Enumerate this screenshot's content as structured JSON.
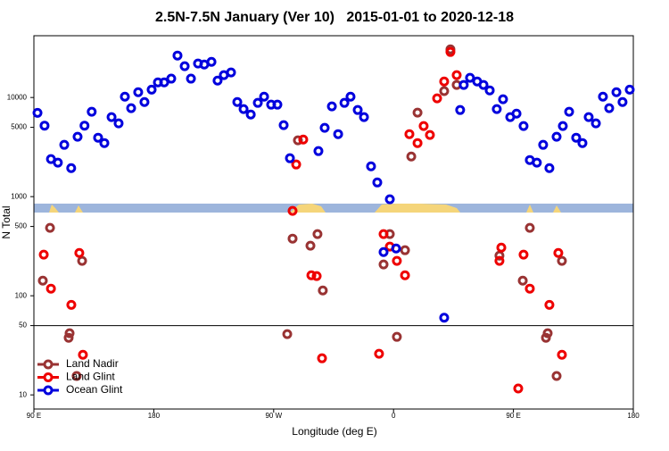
{
  "chart_data": {
    "type": "scatter",
    "title": "2.5N-7.5N January (Ver 10)   2015-01-01 to 2020-12-18",
    "xlabel": "Longitude (deg E)",
    "ylabel": "N Total",
    "xlim": [
      90,
      540
    ],
    "xticks": [
      {
        "value": 90,
        "label": "90 E"
      },
      180,
      {
        "value": 270,
        "label": "90 W"
      },
      {
        "value": 360,
        "label": "0"
      },
      {
        "value": 450,
        "label": "90 E"
      },
      {
        "value": 540,
        "label": "180"
      }
    ],
    "ylim": [
      7.2,
      42000
    ],
    "log_y": true,
    "yticks": [
      10,
      50,
      100,
      500,
      1000,
      5000,
      10000
    ],
    "reference_line": 50,
    "legend": "bottom-left",
    "series": [
      {
        "name": "Land Nadir",
        "color": "#993333",
        "x": [
          96.7,
          102.1,
          116.1,
          116.8,
          126.2,
          122.1,
          280.2,
          284.2,
          288.2,
          297.6,
          302.9,
          306.9,
          352.5,
          357.2,
          362.5,
          368.6,
          373.3,
          378,
          398,
          402.7,
          407.4,
          439.5,
          462.3,
          457,
          474.4,
          475.7,
          486.4,
          482.4
        ],
        "values": [
          142,
          484,
          37.7,
          41.9,
          225,
          15.5,
          41,
          377,
          3700,
          320,
          419,
          113,
          207,
          419,
          38.5,
          288,
          2540,
          7030,
          11600,
          30600,
          13400,
          254,
          484,
          142,
          37.7,
          41.9,
          225,
          15.5
        ]
      },
      {
        "name": "Land Glint",
        "color": "#ee0000",
        "x": [
          97.4,
          102.8,
          118.1,
          124.1,
          126.8,
          284.2,
          286.9,
          292.2,
          298.3,
          302.3,
          306.3,
          349.1,
          352.5,
          357.2,
          362.5,
          368.6,
          371.9,
          378,
          382.6,
          387.3,
          392.7,
          398,
          402.7,
          407.4,
          440.9,
          439.5,
          457.6,
          462.3,
          477,
          483.7,
          486.4,
          453.6
        ],
        "values": [
          260,
          118,
          81,
          270,
          25.4,
          718,
          2110,
          3770,
          161,
          158,
          23.4,
          26,
          419,
          313,
          225,
          161,
          4270,
          3470,
          5150,
          4190,
          9800,
          14500,
          28800,
          16800,
          306,
          225,
          260,
          118,
          81,
          270,
          25.4,
          11.6
        ]
      },
      {
        "name": "Ocean Glint",
        "color": "#0000dd",
        "x": [
          92.7,
          98,
          102.8,
          108,
          112.8,
          118,
          122.8,
          128,
          133.4,
          138.2,
          142.9,
          148.3,
          153.6,
          158.3,
          163,
          168.3,
          173,
          178.4,
          183.1,
          187.8,
          193.1,
          197.8,
          203.2,
          207.9,
          213.2,
          217.9,
          223.3,
          227.9,
          232.6,
          238,
          242.7,
          247.4,
          252.8,
          258.1,
          262.8,
          268.1,
          272.8,
          277.5,
          282.2,
          303.6,
          308.3,
          313.7,
          318.4,
          323.1,
          327.7,
          333.1,
          337.8,
          343.1,
          347.8,
          357.2,
          352.5,
          361.9,
          398,
          410,
          412.7,
          417.4,
          422.8,
          427.5,
          432.2,
          437.5,
          442.2,
          447.6,
          452.3,
          457.6,
          462.3,
          467.6,
          472.3,
          477,
          482.4,
          487.1,
          491.8,
          497.1,
          501.8,
          506.5,
          511.9,
          517.2,
          521.9,
          527.3,
          531.9,
          537.3
        ],
        "values": [
          7000,
          5200,
          2390,
          2200,
          3330,
          1940,
          4020,
          5200,
          7180,
          3930,
          3470,
          6340,
          5480,
          10200,
          7800,
          11300,
          9000,
          12000,
          14200,
          14200,
          15500,
          26500,
          20700,
          15500,
          22000,
          21500,
          22900,
          14800,
          16800,
          17900,
          9000,
          7640,
          6740,
          8830,
          10200,
          8470,
          8470,
          5260,
          2440,
          2880,
          4940,
          8130,
          4270,
          8830,
          10200,
          7480,
          6340,
          2020,
          1390,
          940,
          276,
          300,
          60,
          7480,
          13400,
          15800,
          14500,
          13400,
          11800,
          7640,
          9600,
          6340,
          6880,
          5150,
          2340,
          2200,
          3330,
          1940,
          4020,
          5150,
          7180,
          3930,
          3470,
          6340,
          5480,
          10200,
          7800,
          11300,
          9000,
          12000
        ]
      }
    ]
  }
}
